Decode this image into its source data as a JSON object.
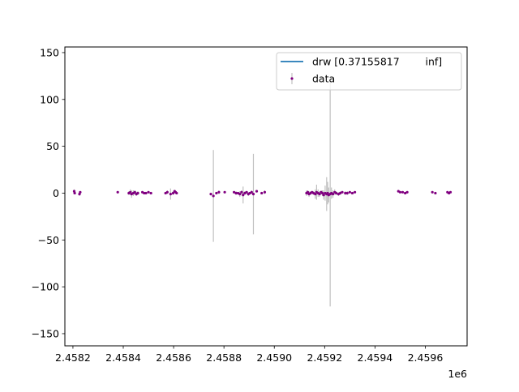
{
  "chart_data": {
    "type": "scatter",
    "title": "",
    "xlabel": "",
    "ylabel": "",
    "x_offset_label": "1e6",
    "xlim": [
      2458168,
      2459766
    ],
    "ylim": [
      -163,
      156
    ],
    "x_ticks": [
      2458200,
      2458400,
      2458600,
      2458800,
      2459000,
      2459200,
      2459400,
      2459600
    ],
    "x_tick_labels": [
      "2.4582",
      "2.4584",
      "2.4586",
      "2.4588",
      "2.4590",
      "2.4592",
      "2.4594",
      "2.4596"
    ],
    "y_ticks": [
      150,
      100,
      50,
      0,
      -50,
      -100,
      -150
    ],
    "y_tick_labels": [
      "150",
      "100",
      "50",
      "0",
      "−50",
      "−100",
      "−150"
    ],
    "legend_position": "top-right",
    "series": [
      {
        "name": "drw [0.37155817        inf]",
        "kind": "line",
        "color": "#1f77b4",
        "points": []
      },
      {
        "name": "data",
        "kind": "errorbar",
        "color": "#800080",
        "ecolor": "#c0c0c0",
        "points": [
          {
            "x": 2458205,
            "y": 2,
            "err": 2
          },
          {
            "x": 2458207,
            "y": 0,
            "err": 1
          },
          {
            "x": 2458226,
            "y": -1,
            "err": 2
          },
          {
            "x": 2458229,
            "y": 1,
            "err": 1
          },
          {
            "x": 2458378,
            "y": 1,
            "err": 1
          },
          {
            "x": 2458422,
            "y": 0,
            "err": 2
          },
          {
            "x": 2458428,
            "y": 1,
            "err": 3
          },
          {
            "x": 2458433,
            "y": -1,
            "err": 4
          },
          {
            "x": 2458440,
            "y": 0,
            "err": 3
          },
          {
            "x": 2458446,
            "y": 1,
            "err": 2
          },
          {
            "x": 2458452,
            "y": -1,
            "err": 2
          },
          {
            "x": 2458458,
            "y": 0,
            "err": 2
          },
          {
            "x": 2458476,
            "y": 1,
            "err": 1
          },
          {
            "x": 2458483,
            "y": 0,
            "err": 1
          },
          {
            "x": 2458490,
            "y": 0,
            "err": 1
          },
          {
            "x": 2458500,
            "y": 1,
            "err": 1
          },
          {
            "x": 2458510,
            "y": 0,
            "err": 1
          },
          {
            "x": 2458568,
            "y": 0,
            "err": 1
          },
          {
            "x": 2458575,
            "y": 1,
            "err": 2
          },
          {
            "x": 2458588,
            "y": -1,
            "err": 6
          },
          {
            "x": 2458598,
            "y": 0,
            "err": 2
          },
          {
            "x": 2458604,
            "y": 2,
            "err": 1
          },
          {
            "x": 2458608,
            "y": 1,
            "err": 1
          },
          {
            "x": 2458612,
            "y": 0,
            "err": 1
          },
          {
            "x": 2458748,
            "y": -1,
            "err": 1
          },
          {
            "x": 2458758,
            "y": -3,
            "err": 49
          },
          {
            "x": 2458770,
            "y": 0,
            "err": 1
          },
          {
            "x": 2458780,
            "y": 1,
            "err": 2
          },
          {
            "x": 2458803,
            "y": 1,
            "err": 1
          },
          {
            "x": 2458840,
            "y": 1,
            "err": 1
          },
          {
            "x": 2458848,
            "y": 0,
            "err": 2
          },
          {
            "x": 2458856,
            "y": 0,
            "err": 1
          },
          {
            "x": 2458863,
            "y": -1,
            "err": 3
          },
          {
            "x": 2458870,
            "y": 1,
            "err": 2
          },
          {
            "x": 2458876,
            "y": -2,
            "err": 9
          },
          {
            "x": 2458883,
            "y": 0,
            "err": 2
          },
          {
            "x": 2458890,
            "y": 1,
            "err": 1
          },
          {
            "x": 2458897,
            "y": -1,
            "err": 2
          },
          {
            "x": 2458903,
            "y": 0,
            "err": 1
          },
          {
            "x": 2458910,
            "y": 1,
            "err": 2
          },
          {
            "x": 2458917,
            "y": -1,
            "err": 43
          },
          {
            "x": 2458930,
            "y": 2,
            "err": 1
          },
          {
            "x": 2458950,
            "y": 0,
            "err": 1
          },
          {
            "x": 2458962,
            "y": 1,
            "err": 2
          },
          {
            "x": 2459128,
            "y": 0,
            "err": 3
          },
          {
            "x": 2459133,
            "y": 1,
            "err": 2
          },
          {
            "x": 2459138,
            "y": -1,
            "err": 3
          },
          {
            "x": 2459144,
            "y": 0,
            "err": 2
          },
          {
            "x": 2459150,
            "y": 1,
            "err": 1
          },
          {
            "x": 2459156,
            "y": 0,
            "err": 2
          },
          {
            "x": 2459163,
            "y": -1,
            "err": 5
          },
          {
            "x": 2459168,
            "y": 1,
            "err": 8
          },
          {
            "x": 2459174,
            "y": 0,
            "err": 4
          },
          {
            "x": 2459180,
            "y": -1,
            "err": 3
          },
          {
            "x": 2459186,
            "y": 1,
            "err": 2
          },
          {
            "x": 2459191,
            "y": 0,
            "err": 3
          },
          {
            "x": 2459196,
            "y": -2,
            "err": 5
          },
          {
            "x": 2459202,
            "y": 0,
            "err": 8
          },
          {
            "x": 2459208,
            "y": -1,
            "err": 18
          },
          {
            "x": 2459212,
            "y": 0,
            "err": 12
          },
          {
            "x": 2459216,
            "y": -2,
            "err": 8
          },
          {
            "x": 2459222,
            "y": -1,
            "err": 120
          },
          {
            "x": 2459227,
            "y": 0,
            "err": 6
          },
          {
            "x": 2459233,
            "y": -1,
            "err": 4
          },
          {
            "x": 2459240,
            "y": 1,
            "err": 3
          },
          {
            "x": 2459246,
            "y": 0,
            "err": 2
          },
          {
            "x": 2459255,
            "y": -1,
            "err": 2
          },
          {
            "x": 2459262,
            "y": 0,
            "err": 2
          },
          {
            "x": 2459270,
            "y": 1,
            "err": 1
          },
          {
            "x": 2459282,
            "y": 0,
            "err": 2
          },
          {
            "x": 2459290,
            "y": 0,
            "err": 2
          },
          {
            "x": 2459300,
            "y": 1,
            "err": 1
          },
          {
            "x": 2459310,
            "y": 0,
            "err": 1
          },
          {
            "x": 2459320,
            "y": 1,
            "err": 1
          },
          {
            "x": 2459493,
            "y": 2,
            "err": 1
          },
          {
            "x": 2459500,
            "y": 1,
            "err": 1
          },
          {
            "x": 2459510,
            "y": 1,
            "err": 1
          },
          {
            "x": 2459520,
            "y": 0,
            "err": 1
          },
          {
            "x": 2459528,
            "y": 1,
            "err": 1
          },
          {
            "x": 2459628,
            "y": 1,
            "err": 1
          },
          {
            "x": 2459640,
            "y": 0,
            "err": 1
          },
          {
            "x": 2459688,
            "y": 1,
            "err": 1
          },
          {
            "x": 2459694,
            "y": 0,
            "err": 1
          },
          {
            "x": 2459700,
            "y": 1,
            "err": 1
          }
        ]
      }
    ]
  }
}
